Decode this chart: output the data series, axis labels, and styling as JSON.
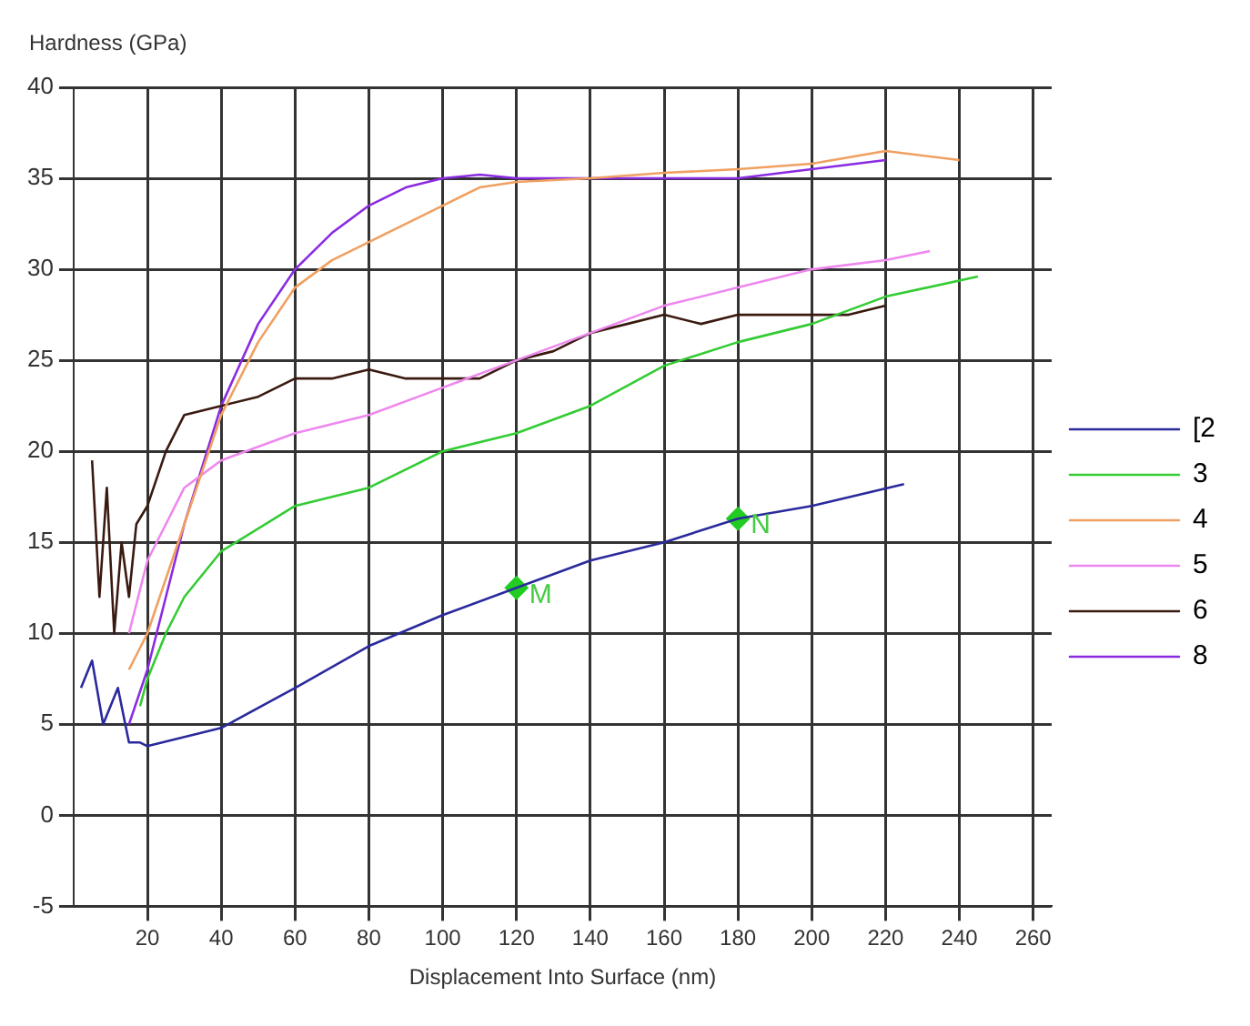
{
  "chart_data": {
    "type": "line",
    "xlabel": "Displacement Into Surface (nm)",
    "ylabel": "Hardness (GPa)",
    "xlim": [
      0,
      265
    ],
    "xticks": [
      20,
      40,
      60,
      80,
      100,
      120,
      140,
      160,
      180,
      200,
      220,
      240,
      260
    ],
    "ylim": [
      -5,
      40
    ],
    "yticks": [
      -5,
      0,
      5,
      10,
      15,
      20,
      25,
      30,
      35,
      40
    ],
    "grid": true,
    "legend": "right",
    "line_style": "solid",
    "series": [
      {
        "name": "[2",
        "color": "#2a2a9c",
        "x": [
          2,
          5,
          8,
          12,
          15,
          18,
          20,
          30,
          40,
          60,
          80,
          100,
          120,
          140,
          160,
          180,
          200,
          225
        ],
        "values": [
          7,
          8.5,
          5,
          7,
          4,
          4,
          3.8,
          4.3,
          4.8,
          7,
          9.3,
          11,
          12.5,
          14,
          15,
          16.3,
          17,
          18.2
        ]
      },
      {
        "name": "3",
        "color": "#33cc33",
        "x": [
          18,
          20,
          25,
          30,
          40,
          60,
          80,
          100,
          120,
          140,
          160,
          180,
          200,
          220,
          245
        ],
        "values": [
          6,
          7.5,
          10,
          12,
          14.5,
          17,
          18,
          20,
          21,
          22.5,
          24.7,
          26,
          27,
          28.5,
          29.6
        ]
      },
      {
        "name": "4",
        "color": "#f0a060",
        "x": [
          15,
          20,
          30,
          40,
          50,
          60,
          70,
          80,
          90,
          100,
          110,
          120,
          140,
          160,
          180,
          200,
          220,
          240
        ],
        "values": [
          8,
          10,
          16,
          22,
          26,
          29,
          30.5,
          31.5,
          32.5,
          33.5,
          34.5,
          34.8,
          35,
          35.3,
          35.5,
          35.8,
          36.5,
          36
        ]
      },
      {
        "name": "5",
        "color": "#ee88ee",
        "x": [
          15,
          20,
          25,
          30,
          40,
          60,
          80,
          100,
          120,
          140,
          160,
          180,
          200,
          220,
          232
        ],
        "values": [
          10,
          14,
          16,
          18,
          19.5,
          21,
          22,
          23.5,
          25,
          26.5,
          28,
          29,
          30,
          30.5,
          31
        ]
      },
      {
        "name": "6",
        "color": "#3a1a10",
        "x": [
          5,
          7,
          9,
          11,
          13,
          15,
          17,
          20,
          25,
          30,
          40,
          50,
          60,
          70,
          80,
          90,
          100,
          110,
          120,
          130,
          140,
          150,
          160,
          170,
          180,
          190,
          200,
          210,
          220
        ],
        "values": [
          19.5,
          12,
          18,
          10,
          15,
          12,
          16,
          17,
          20,
          22,
          22.5,
          23,
          24,
          24,
          24.5,
          24,
          24,
          24,
          25,
          25.5,
          26.5,
          27,
          27.5,
          27,
          27.5,
          27.5,
          27.5,
          27.5,
          28
        ]
      },
      {
        "name": "8",
        "color": "#8a2be2",
        "x": [
          15,
          20,
          30,
          40,
          50,
          60,
          70,
          80,
          90,
          100,
          110,
          120,
          140,
          160,
          180,
          200,
          220
        ],
        "values": [
          5,
          8,
          16,
          22.5,
          27,
          30,
          32,
          33.5,
          34.5,
          35,
          35.2,
          35,
          35,
          35,
          35,
          35.5,
          36
        ]
      },
      {
        "type": "scatter",
        "marker": "diamond",
        "color": "#22cc22",
        "x": [
          120,
          180
        ],
        "values": [
          12.5,
          16.3
        ]
      }
    ],
    "annotations": [
      {
        "text": "M",
        "x": 120,
        "y": 12.5
      },
      {
        "text": "N",
        "x": 180,
        "y": 16.3
      }
    ]
  }
}
